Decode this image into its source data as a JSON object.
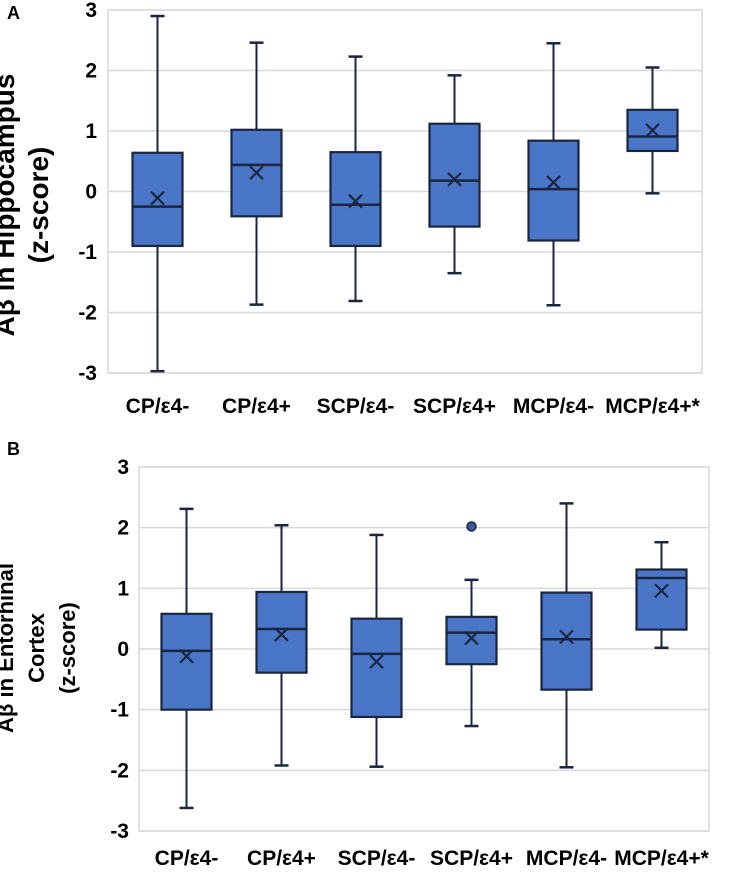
{
  "panels": [
    {
      "label": "A",
      "y_title_lines": [
        "Aβ in Hippocampus",
        "(z-score)"
      ]
    },
    {
      "label": "B",
      "y_title_lines": [
        "Aβ in Entorhinal",
        "Cortex",
        "(z-score)"
      ]
    }
  ],
  "colors": {
    "box_fill": "#4a76c8",
    "line": "#1a253f",
    "gridline": "#d9d9d9",
    "text": "#000000",
    "outlier_fill": "#35589e",
    "background": "#ffffff"
  },
  "chart_data": [
    {
      "type": "boxplot",
      "panel": "A",
      "title": "Aβ in Hippocampus (z-score)",
      "ylabel": "Aβ in Hippocampus (z-score)",
      "ylim": [
        -3,
        3
      ],
      "yticks": [
        3,
        2,
        1,
        0,
        -1,
        -2,
        -3
      ],
      "grid": true,
      "categories": [
        "CP/ε4-",
        "CP/ε4+",
        "SCP/ε4-",
        "SCP/ε4+",
        "MCP/ε4-",
        "MCP/ε4+*"
      ],
      "boxes": [
        {
          "category": "CP/ε4-",
          "whisker_low": -2.97,
          "q1": -0.9,
          "median": -0.25,
          "mean": -0.11,
          "q3": 0.64,
          "whisker_high": 2.9,
          "outliers": []
        },
        {
          "category": "CP/ε4+",
          "whisker_low": -1.87,
          "q1": -0.41,
          "median": 0.44,
          "mean": 0.31,
          "q3": 1.02,
          "whisker_high": 2.46,
          "outliers": []
        },
        {
          "category": "SCP/ε4-",
          "whisker_low": -1.81,
          "q1": -0.9,
          "median": -0.22,
          "mean": -0.16,
          "q3": 0.65,
          "whisker_high": 2.23,
          "outliers": []
        },
        {
          "category": "SCP/ε4+",
          "whisker_low": -1.35,
          "q1": -0.58,
          "median": 0.18,
          "mean": 0.2,
          "q3": 1.12,
          "whisker_high": 1.92,
          "outliers": []
        },
        {
          "category": "MCP/ε4-",
          "whisker_low": -1.88,
          "q1": -0.81,
          "median": 0.04,
          "mean": 0.15,
          "q3": 0.84,
          "whisker_high": 2.45,
          "outliers": []
        },
        {
          "category": "MCP/ε4+*",
          "whisker_low": -0.03,
          "q1": 0.67,
          "median": 0.91,
          "mean": 1.01,
          "q3": 1.35,
          "whisker_high": 2.05,
          "outliers": []
        }
      ]
    },
    {
      "type": "boxplot",
      "panel": "B",
      "title": "Aβ in Entorhinal Cortex (z-score)",
      "ylabel": "Aβ in Entorhinal Cortex (z-score)",
      "ylim": [
        -3,
        3
      ],
      "yticks": [
        3,
        2,
        1,
        0,
        -1,
        -2,
        -3
      ],
      "grid": true,
      "categories": [
        "CP/ε4-",
        "CP/ε4+",
        "SCP/ε4-",
        "SCP/ε4+",
        "MCP/ε4-",
        "MCP/ε4+*"
      ],
      "boxes": [
        {
          "category": "CP/ε4-",
          "whisker_low": -2.62,
          "q1": -1.0,
          "median": -0.03,
          "mean": -0.12,
          "q3": 0.58,
          "whisker_high": 2.31,
          "outliers": []
        },
        {
          "category": "CP/ε4+",
          "whisker_low": -1.92,
          "q1": -0.39,
          "median": 0.33,
          "mean": 0.24,
          "q3": 0.94,
          "whisker_high": 2.04,
          "outliers": []
        },
        {
          "category": "SCP/ε4-",
          "whisker_low": -1.94,
          "q1": -1.12,
          "median": -0.08,
          "mean": -0.21,
          "q3": 0.5,
          "whisker_high": 1.88,
          "outliers": []
        },
        {
          "category": "SCP/ε4+",
          "whisker_low": -1.27,
          "q1": -0.25,
          "median": 0.27,
          "mean": 0.18,
          "q3": 0.53,
          "whisker_high": 1.14,
          "outliers": [
            2.02
          ]
        },
        {
          "category": "MCP/ε4-",
          "whisker_low": -1.95,
          "q1": -0.67,
          "median": 0.16,
          "mean": 0.2,
          "q3": 0.93,
          "whisker_high": 2.4,
          "outliers": []
        },
        {
          "category": "MCP/ε4+*",
          "whisker_low": 0.02,
          "q1": 0.32,
          "median": 1.17,
          "mean": 0.96,
          "q3": 1.31,
          "whisker_high": 1.76,
          "outliers": []
        }
      ]
    }
  ]
}
